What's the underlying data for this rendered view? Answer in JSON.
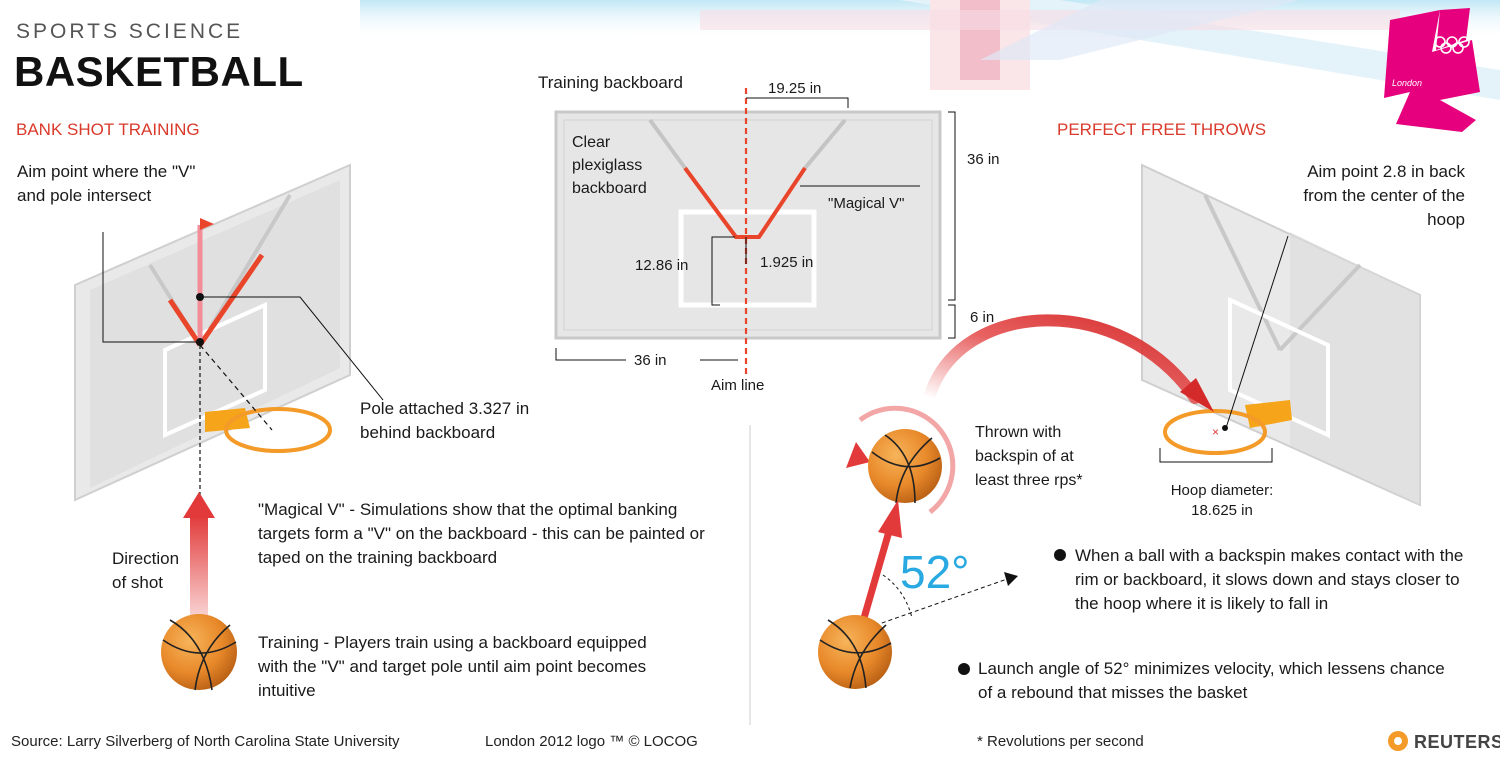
{
  "header": {
    "kicker": "SPORTS SCIENCE",
    "title": "BASKETBALL"
  },
  "logo": {
    "text": "London"
  },
  "bank_shot": {
    "heading": "BANK SHOT TRAINING",
    "aim_point": "Aim point where the \"V\" and pole intersect",
    "pole": "Pole attached 3.327 in behind backboard",
    "direction": "Direction of shot",
    "magical_v": "\"Magical V\" - Simulations show that the optimal banking targets form a \"V\" on the backboard - this can be painted or taped on the training backboard",
    "training": "Training - Players train using a backboard equipped with the \"V\" and target pole until aim point becomes intuitive"
  },
  "training_backboard": {
    "title": "Training backboard",
    "top_dim": "19.25 in",
    "height_dim": "36 in",
    "bottom_dim": "6 in",
    "width_dim": "36 in",
    "plexiglass": "Clear plexiglass backboard",
    "magical_v": "\"Magical V\"",
    "left_dim": "12.86 in",
    "center_dim": "1.925 in",
    "aim_line": "Aim line"
  },
  "free_throws": {
    "heading": "PERFECT FREE THROWS",
    "aim_point": "Aim point  2.8 in back from the center of the hoop",
    "hoop": "Hoop diameter: 18.625 in",
    "thrown": "Thrown with backspin of at least three rps*",
    "angle": "52°",
    "bullet1": "When a ball with a backspin makes contact with the rim or backboard, it slows down and stays closer to the hoop where it is likely to fall in",
    "bullet2": "Launch angle of 52° minimizes velocity, which lessens chance of a rebound that misses the basket"
  },
  "footer": {
    "source": "Source: Larry Silverberg of North Carolina State University",
    "logo_credit": "London 2012 logo ™ © LOCOG",
    "footnote": "* Revolutions per second",
    "brand": "REUTERS"
  },
  "colors": {
    "accent_red": "#d93a2b",
    "v_red": "#e8452a",
    "angle_blue": "#29a9e1",
    "ball_orange": "#e8922a",
    "logo_pink": "#e6007e"
  }
}
